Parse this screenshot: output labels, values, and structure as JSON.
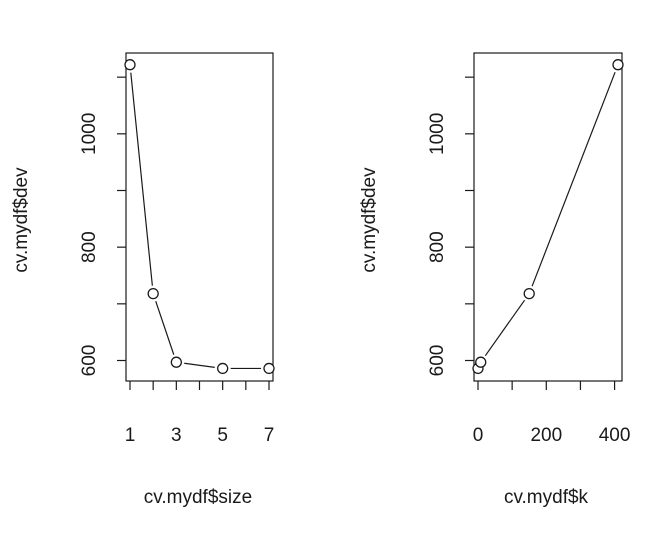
{
  "chart_data": [
    {
      "type": "line",
      "markers": "open-circle",
      "line_style": "solid",
      "xlabel": "cv.mydf$size",
      "ylabel": "cv.mydf$dev",
      "xlim": [
        1,
        7
      ],
      "ylim": [
        585,
        1125
      ],
      "x_ticks": [
        1,
        2,
        3,
        4,
        5,
        6,
        7
      ],
      "x_tick_labels": [
        "1",
        "3",
        "5",
        "7"
      ],
      "y_ticks": [
        600,
        700,
        800,
        900,
        1000,
        1100
      ],
      "y_tick_labels": [
        "600",
        "800",
        "1000"
      ],
      "x": [
        1,
        2,
        3,
        5,
        7
      ],
      "y": [
        1122,
        718,
        597,
        586,
        586
      ]
    },
    {
      "type": "line",
      "markers": "open-circle",
      "line_style": "solid",
      "xlabel": "cv.mydf$k",
      "ylabel": "cv.mydf$dev",
      "xlim": [
        0,
        410
      ],
      "ylim": [
        585,
        1125
      ],
      "x_ticks": [
        0,
        100,
        200,
        300,
        400
      ],
      "x_tick_labels": [
        "0",
        "200",
        "400"
      ],
      "y_ticks": [
        600,
        700,
        800,
        900,
        1000,
        1100
      ],
      "y_tick_labels": [
        "600",
        "800",
        "1000"
      ],
      "x": [
        0,
        8,
        150,
        410
      ],
      "y": [
        586,
        597,
        718,
        1122
      ]
    }
  ]
}
